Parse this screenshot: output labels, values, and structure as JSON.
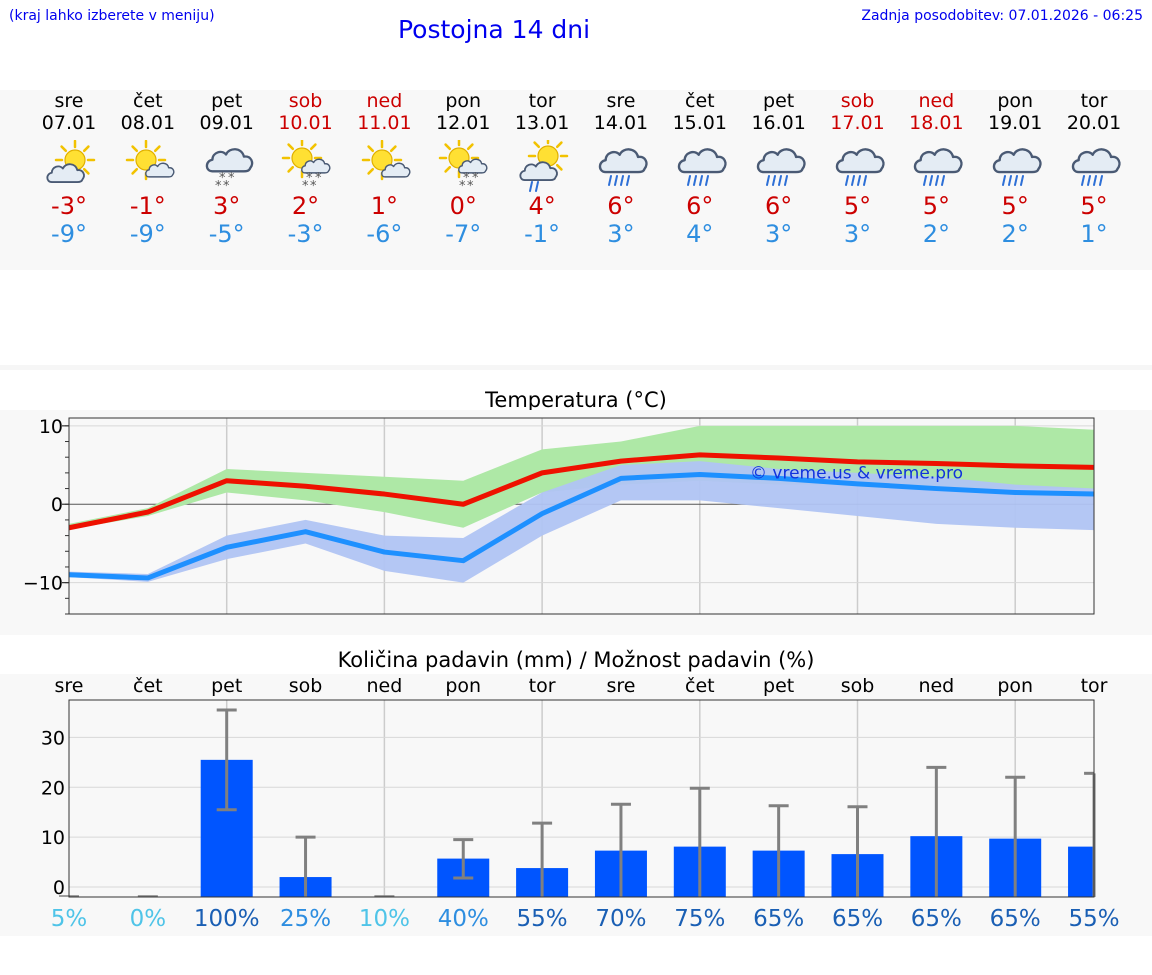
{
  "header": {
    "left_note": "(kraj lahko izberete v meniju)",
    "title": "Postojna 14 dni",
    "updated": "Zadnja posodobitev: 07.01.2026 - 06:25"
  },
  "days": [
    {
      "name": "sre",
      "date": "07.01",
      "tmax": "-3°",
      "tmin": "-9°",
      "weekend": false,
      "icon": "sun-cloud"
    },
    {
      "name": "čet",
      "date": "08.01",
      "tmax": "-1°",
      "tmin": "-9°",
      "weekend": false,
      "icon": "sun-small-cloud"
    },
    {
      "name": "pet",
      "date": "09.01",
      "tmax": "3°",
      "tmin": "-5°",
      "weekend": false,
      "icon": "cloud-snow"
    },
    {
      "name": "sob",
      "date": "10.01",
      "tmax": "2°",
      "tmin": "-3°",
      "weekend": true,
      "icon": "sun-cloud-snow"
    },
    {
      "name": "ned",
      "date": "11.01",
      "tmax": "1°",
      "tmin": "-6°",
      "weekend": true,
      "icon": "sun-small-cloud"
    },
    {
      "name": "pon",
      "date": "12.01",
      "tmax": "0°",
      "tmin": "-7°",
      "weekend": false,
      "icon": "sun-cloud-snow"
    },
    {
      "name": "tor",
      "date": "13.01",
      "tmax": "4°",
      "tmin": "-1°",
      "weekend": false,
      "icon": "sun-cloud-rain"
    },
    {
      "name": "sre",
      "date": "14.01",
      "tmax": "6°",
      "tmin": "3°",
      "weekend": false,
      "icon": "cloud-rain"
    },
    {
      "name": "čet",
      "date": "15.01",
      "tmax": "6°",
      "tmin": "4°",
      "weekend": false,
      "icon": "cloud-rain"
    },
    {
      "name": "pet",
      "date": "16.01",
      "tmax": "6°",
      "tmin": "3°",
      "weekend": false,
      "icon": "cloud-rain"
    },
    {
      "name": "sob",
      "date": "17.01",
      "tmax": "5°",
      "tmin": "3°",
      "weekend": true,
      "icon": "cloud-rain"
    },
    {
      "name": "ned",
      "date": "18.01",
      "tmax": "5°",
      "tmin": "2°",
      "weekend": true,
      "icon": "cloud-rain"
    },
    {
      "name": "pon",
      "date": "19.01",
      "tmax": "5°",
      "tmin": "2°",
      "weekend": false,
      "icon": "cloud-rain"
    },
    {
      "name": "tor",
      "date": "20.01",
      "tmax": "5°",
      "tmin": "1°",
      "weekend": false,
      "icon": "cloud-rain"
    }
  ],
  "colors": {
    "tmax": "#ee1100",
    "tmin": "#1e90ff",
    "tmax_band": "#aee8a6",
    "tmin_band": "#b0c4f3",
    "overlap_band": "#7fc4b4",
    "bar": "#0055ff",
    "errorbar": "#808080",
    "weekend_text": "#cc0000"
  },
  "chart_data": [
    {
      "type": "line",
      "title": "Temperatura (°C)",
      "watermark": "© vreme.us & vreme.pro",
      "ylim": [
        -14,
        11
      ],
      "yticks": [
        -10,
        0,
        10
      ],
      "ytick_labels": [
        "−10",
        "0",
        "10"
      ],
      "series": [
        {
          "name": "tmax",
          "values": [
            -3,
            -1,
            3,
            2.3,
            1.3,
            0,
            4,
            5.5,
            6.3,
            5.9,
            5.4,
            5.2,
            4.9,
            4.7
          ],
          "band_low": [
            -3.2,
            -1.5,
            1.5,
            0.5,
            -1,
            -3,
            1.5,
            2.5,
            3,
            2.5,
            2.5,
            2,
            2,
            2
          ],
          "band_high": [
            -2.5,
            -0.5,
            4.5,
            4,
            3.5,
            3,
            7,
            8,
            10,
            10,
            10,
            10,
            10,
            9.5
          ]
        },
        {
          "name": "tmin",
          "values": [
            -9,
            -9.4,
            -5.5,
            -3.5,
            -6.1,
            -7.2,
            -1.2,
            3.3,
            3.8,
            3.3,
            2.6,
            2,
            1.5,
            1.3
          ],
          "band_low": [
            -9.3,
            -9.9,
            -7,
            -5,
            -8.5,
            -10,
            -4,
            0.5,
            0.5,
            -0.5,
            -1.5,
            -2.5,
            -3,
            -3.3
          ],
          "band_high": [
            -8.6,
            -8.9,
            -4,
            -2,
            -4,
            -4.3,
            1.5,
            5,
            5.5,
            4.5,
            4,
            3.5,
            2.5,
            2
          ]
        }
      ]
    },
    {
      "type": "bar",
      "title": "Količina padavin (mm) / Možnost padavin (%)",
      "categories": [
        "sre",
        "čet",
        "pet",
        "sob",
        "ned",
        "pon",
        "tor",
        "sre",
        "čet",
        "pet",
        "sob",
        "ned",
        "pon",
        "tor"
      ],
      "ylim": [
        -2,
        37.5
      ],
      "yticks": [
        0,
        10,
        20,
        30
      ],
      "values": [
        0,
        0,
        25.5,
        2,
        0,
        5.7,
        3.8,
        7.3,
        8.1,
        7.3,
        6.6,
        10.2,
        9.7,
        8.1
      ],
      "err_low": [
        0,
        0,
        15.5,
        0,
        0,
        1.8,
        0,
        0,
        0,
        0,
        0,
        0,
        0,
        0
      ],
      "err_high": [
        0,
        0,
        35.5,
        10,
        0,
        9.5,
        12.8,
        16.6,
        19.8,
        16.3,
        16.1,
        24,
        22,
        22.8
      ],
      "probability": [
        "5%",
        "0%",
        "100%",
        "25%",
        "10%",
        "40%",
        "55%",
        "70%",
        "75%",
        "65%",
        "65%",
        "65%",
        "65%",
        "55%"
      ],
      "probability_values": [
        5,
        0,
        100,
        25,
        10,
        40,
        55,
        70,
        75,
        65,
        65,
        65,
        65,
        55
      ]
    }
  ]
}
